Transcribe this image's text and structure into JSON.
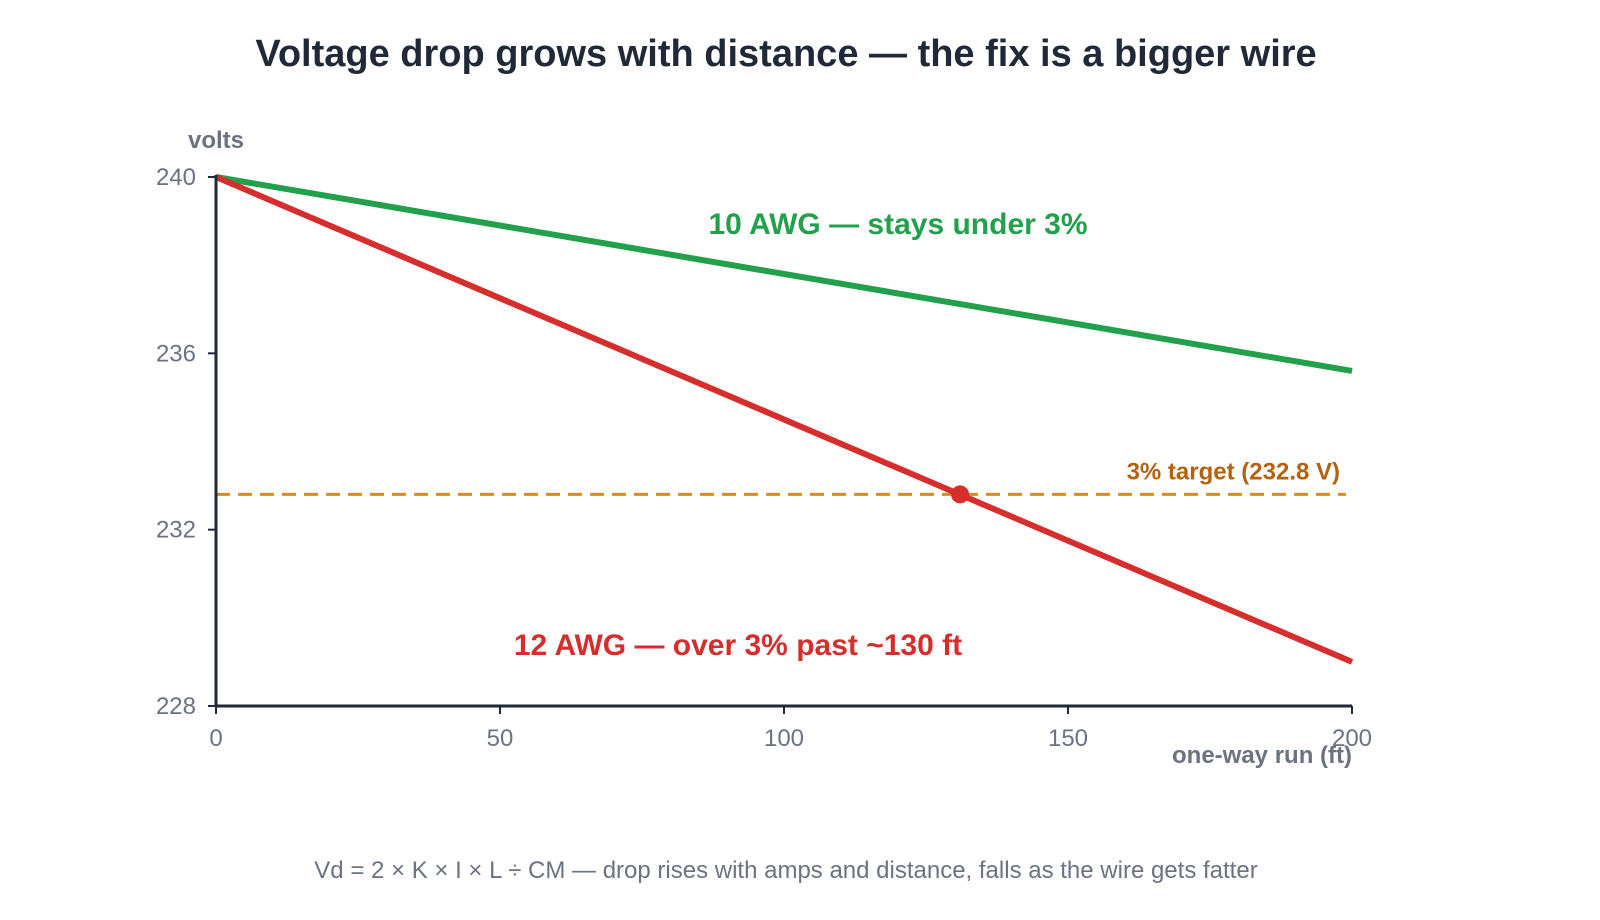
{
  "chart_data": {
    "type": "line",
    "title": "Voltage drop grows with distance — the fix is a bigger wire",
    "xlabel": "one-way run (ft)",
    "ylabel": "volts",
    "xlim": [
      0,
      200
    ],
    "ylim": [
      228,
      240
    ],
    "x_ticks": [
      0,
      50,
      100,
      150,
      200
    ],
    "y_ticks": [
      228,
      232,
      236,
      240
    ],
    "grid": false,
    "series": [
      {
        "name": "10 AWG — stays under 3%",
        "color": "#22a04b",
        "x": [
          0,
          200
        ],
        "y": [
          240,
          235.6
        ]
      },
      {
        "name": "12 AWG — over 3% past ~130 ft",
        "color": "#d62d2d",
        "x": [
          0,
          200
        ],
        "y": [
          240,
          229
        ]
      }
    ],
    "reference_line": {
      "label": "3% target (232.8 V)",
      "y": 232.8,
      "color": "#d98a1f",
      "label_color": "#b5620f"
    },
    "marker": {
      "x": 131,
      "y": 232.8,
      "color": "#d62d2d"
    },
    "footnote": "Vd = 2 × K × I × L ÷ CM — drop rises with amps and distance, falls as the wire gets fatter"
  }
}
